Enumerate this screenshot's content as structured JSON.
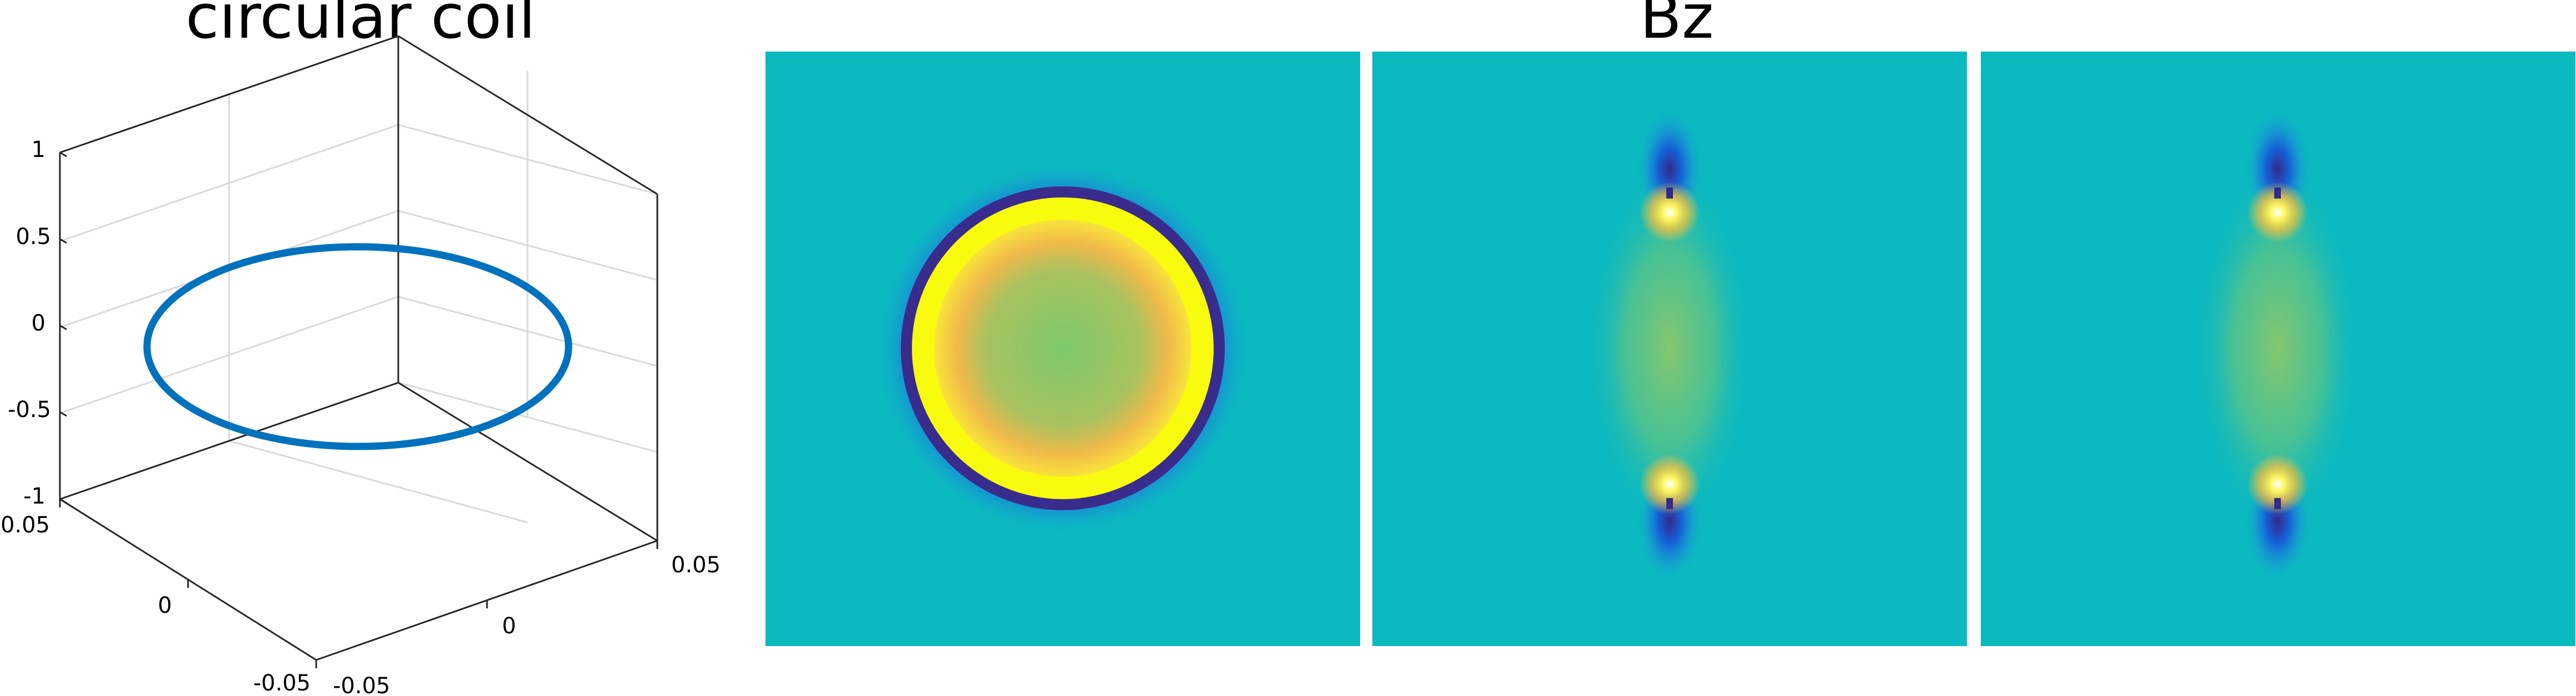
{
  "chart_data": [
    {
      "type": "line",
      "title": "circular coil",
      "projection": "3d",
      "x_ticks": [
        "-0.05",
        "0",
        "0.05"
      ],
      "y_ticks": [
        "-0.05",
        "0",
        "0.05"
      ],
      "z_ticks": [
        "-1",
        "-0.5",
        "0",
        "0.5",
        "1"
      ],
      "xlim": [
        -0.05,
        0.05
      ],
      "ylim": [
        -0.05,
        0.05
      ],
      "zlim": [
        -1,
        1
      ],
      "grid": true,
      "series": [
        {
          "shape": "circle",
          "center": [
            0,
            0,
            0
          ],
          "radius": 0.036,
          "color": "#0072BD"
        }
      ]
    },
    {
      "type": "heatmap",
      "title": "Bz",
      "panels": [
        {
          "view": "axial slice (z = 0)",
          "feature": "ring at coil radius, uniform centre"
        },
        {
          "view": "coronal slice",
          "feature": "coil cross-sections at top and bottom"
        },
        {
          "view": "sagittal slice",
          "feature": "coil cross-sections at top and bottom"
        }
      ],
      "colormap": "parula",
      "colormap_stops": [
        "#352A87",
        "#0F5CDD",
        "#1481D6",
        "#06A4CA",
        "#2EB7A4",
        "#87BF77",
        "#D1BB59",
        "#FEC832",
        "#F9FB0E"
      ],
      "background_color": "#0BB9C0"
    }
  ]
}
